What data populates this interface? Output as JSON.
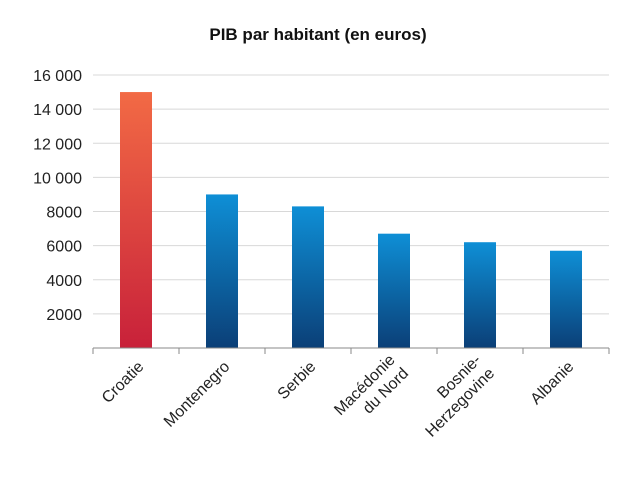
{
  "chart_data": {
    "type": "bar",
    "title": "PIB par habitant (en euros)",
    "xlabel": "",
    "ylabel": "",
    "ylim": [
      0,
      16000
    ],
    "yticks": [
      2000,
      4000,
      6000,
      8000,
      10000,
      12000,
      14000,
      16000
    ],
    "ytick_labels": [
      "2000",
      "4000",
      "6000",
      "8000",
      "10 000",
      "12 000",
      "14 000",
      "16 000"
    ],
    "grid": true,
    "legend": "none",
    "categories": [
      "Croatie",
      "Montenegro",
      "Serbie",
      "Macédonie du Nord",
      "Bosnie-Herzegovine",
      "Albanie"
    ],
    "category_label_lines": [
      [
        "Croatie"
      ],
      [
        "Montenegro"
      ],
      [
        "Serbie"
      ],
      [
        "Macédonie",
        "du Nord"
      ],
      [
        "Bosnie-",
        "Herzegovine"
      ],
      [
        "Albanie"
      ]
    ],
    "values": [
      15000,
      9000,
      8300,
      6700,
      6200,
      5700
    ],
    "colors": {
      "highlight_top": "#f26a45",
      "highlight_bottom": "#c8213a",
      "bar_top": "#0e8fd6",
      "bar_bottom": "#0b3f77"
    },
    "highlight_index": 0
  }
}
